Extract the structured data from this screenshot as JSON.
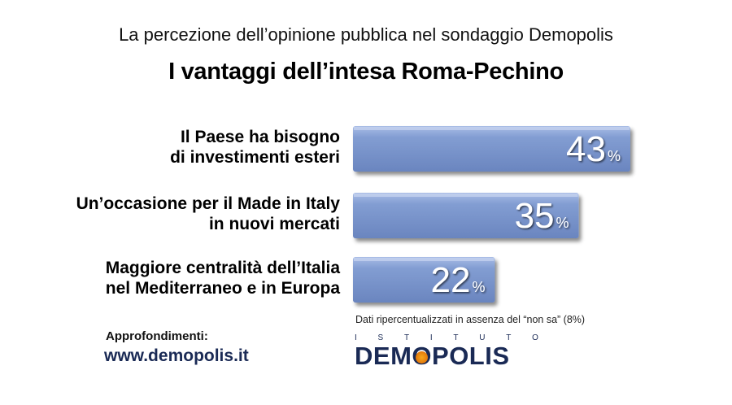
{
  "header": {
    "supertitle": "La percezione dell’opinione pubblica nel sondaggio Demopolis",
    "title": "I vantaggi dell’intesa Roma-Pechino"
  },
  "chart_data": {
    "type": "bar",
    "orientation": "horizontal",
    "categories": [
      [
        "Il Paese ha bisogno",
        "di investimenti esteri"
      ],
      [
        "Un’occasione per il Made in Italy",
        "in nuovi mercati"
      ],
      [
        "Maggiore centralità dell’Italia",
        "nel Mediterraneo e in Europa"
      ]
    ],
    "values": [
      43,
      35,
      22
    ],
    "value_labels": [
      "43",
      "35",
      "22"
    ],
    "unit": "%",
    "bar_color": "#7f99cf",
    "grid": false,
    "legend": "none"
  },
  "footer": {
    "note": "Dati ripercentualizzati in assenza del “non sa” (8%)",
    "more_label": "Approfondimenti:",
    "more_link": "www.demopolis.it",
    "logo_top": [
      "I",
      "S",
      "T",
      "I",
      "T",
      "U",
      "T",
      "O"
    ],
    "logo_main_1": "DEM",
    "logo_main_o": "O",
    "logo_main_2": "POLIS",
    "logo_color": "#1a2a55",
    "logo_accent": "#f39c12"
  }
}
